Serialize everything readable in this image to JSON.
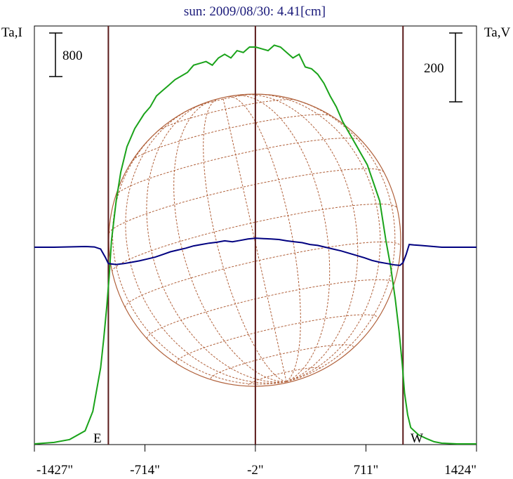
{
  "chart_data": {
    "type": "line",
    "title": "sun: 2009/08/30: 4.41[cm]",
    "left_axis_label": "Ta,I",
    "right_axis_label": "Ta,V",
    "scale_bar_left_label": "800",
    "scale_bar_right_label": "200",
    "limb_labels": {
      "east": "E",
      "west": "W"
    },
    "x_ticks": [
      "-1427\"",
      "-714\"",
      "-2\"",
      "711\"",
      "1424\""
    ],
    "xlim": [
      -1427,
      1424
    ],
    "limb_x": [
      -950,
      950
    ],
    "center_x": -2,
    "colors": {
      "stokes_I": "#1aa31a",
      "stokes_V": "#000080",
      "grid": "#b0603a",
      "frame": "#000000",
      "limb_line": "#5a1a1a",
      "title": "#1a1a7a"
    },
    "series": [
      {
        "key": "I",
        "x": [
          -1427,
          -1300,
          -1200,
          -1100,
          -1050,
          -1000,
          -980,
          -960,
          -945,
          -930,
          -900,
          -870,
          -830,
          -780,
          -720,
          -680,
          -640,
          -600,
          -560,
          -520,
          -480,
          -440,
          -400,
          -360,
          -320,
          -280,
          -240,
          -200,
          -160,
          -120,
          -80,
          -40,
          0,
          40,
          80,
          120,
          160,
          200,
          240,
          280,
          320,
          360,
          400,
          440,
          480,
          520,
          560,
          600,
          640,
          680,
          720,
          760,
          800,
          840,
          870,
          900,
          925,
          945,
          960,
          980,
          1000,
          1050,
          1100,
          1150,
          1200,
          1300,
          1424
        ],
        "y": [
          0,
          40,
          120,
          360,
          900,
          2100,
          2900,
          3800,
          4600,
          5600,
          6700,
          7500,
          8200,
          8700,
          9100,
          9300,
          9600,
          9750,
          9900,
          10050,
          10150,
          10250,
          10450,
          10500,
          10550,
          10450,
          10650,
          10750,
          10650,
          10850,
          10800,
          10950,
          10950,
          10900,
          10850,
          11000,
          10950,
          10800,
          10650,
          10750,
          10400,
          10350,
          10200,
          9950,
          9600,
          9300,
          8900,
          8600,
          8300,
          8000,
          7700,
          7200,
          6700,
          5600,
          4900,
          4000,
          3100,
          2200,
          1400,
          800,
          450,
          250,
          150,
          60,
          20,
          0,
          0
        ]
      },
      {
        "key": "V",
        "x": [
          -1427,
          -1300,
          -1100,
          -1040,
          -1000,
          -970,
          -950,
          -900,
          -850,
          -800,
          -750,
          -700,
          -650,
          -600,
          -550,
          -500,
          -450,
          -400,
          -350,
          -300,
          -250,
          -200,
          -150,
          -100,
          -50,
          0,
          50,
          100,
          150,
          200,
          250,
          300,
          350,
          400,
          450,
          500,
          550,
          600,
          650,
          700,
          750,
          800,
          850,
          900,
          930,
          950,
          970,
          990,
          1020,
          1060,
          1100,
          1200,
          1300,
          1424
        ],
        "y": [
          0,
          0,
          8,
          3,
          -20,
          -110,
          -180,
          -190,
          -180,
          -165,
          -150,
          -130,
          -110,
          -80,
          -50,
          -30,
          -10,
          15,
          30,
          45,
          55,
          70,
          60,
          75,
          90,
          100,
          95,
          90,
          85,
          70,
          60,
          50,
          30,
          20,
          0,
          -20,
          -40,
          -65,
          -90,
          -115,
          -145,
          -165,
          -180,
          -195,
          -200,
          -170,
          -80,
          30,
          25,
          20,
          15,
          0,
          0,
          0
        ]
      }
    ]
  }
}
